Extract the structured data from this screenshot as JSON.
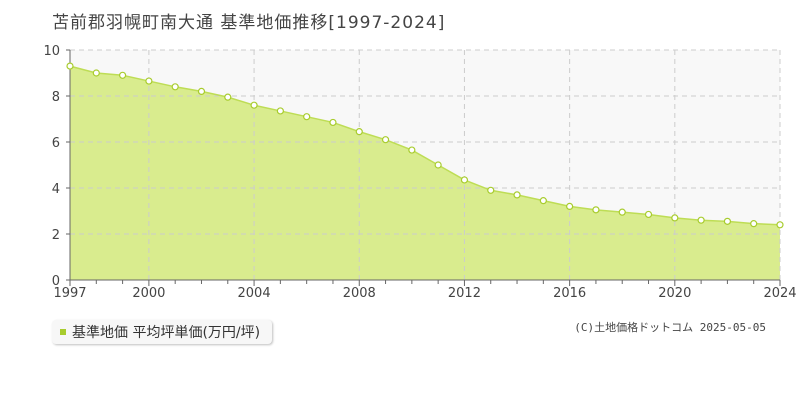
{
  "chart_data": {
    "type": "area",
    "title": "苫前郡羽幌町南大通 基準地価推移[1997-2024]",
    "legend_label": "基準地価 平均坪単価(万円/坪)",
    "credit": "(C)土地価格ドットコム 2025-05-05",
    "x_ticks": [
      1997,
      2000,
      2004,
      2008,
      2012,
      2016,
      2020,
      2024
    ],
    "y_ticks": [
      0,
      2,
      4,
      6,
      8,
      10
    ],
    "xlim": [
      1997,
      2024
    ],
    "ylim": [
      0,
      10
    ],
    "grid": true,
    "legend_position": "bottom-left",
    "colors": {
      "fill": "#d9ec8e",
      "line": "#bedd55",
      "marker": "#a8cc2e",
      "grid": "#cccccc"
    },
    "series": [
      {
        "x": [
          1997,
          1998,
          1999,
          2000,
          2001,
          2002,
          2003,
          2004,
          2005,
          2006,
          2007,
          2008,
          2009,
          2010,
          2011,
          2012,
          2013,
          2014,
          2015,
          2016,
          2017,
          2018,
          2019,
          2020,
          2021,
          2022,
          2023,
          2024
        ],
        "values": [
          9.3,
          9.0,
          8.9,
          8.65,
          8.4,
          8.2,
          7.95,
          7.6,
          7.35,
          7.1,
          6.85,
          6.45,
          6.1,
          5.65,
          5.0,
          4.35,
          3.9,
          3.7,
          3.45,
          3.2,
          3.05,
          2.95,
          2.85,
          2.7,
          2.6,
          2.55,
          2.45,
          2.4
        ]
      }
    ]
  }
}
